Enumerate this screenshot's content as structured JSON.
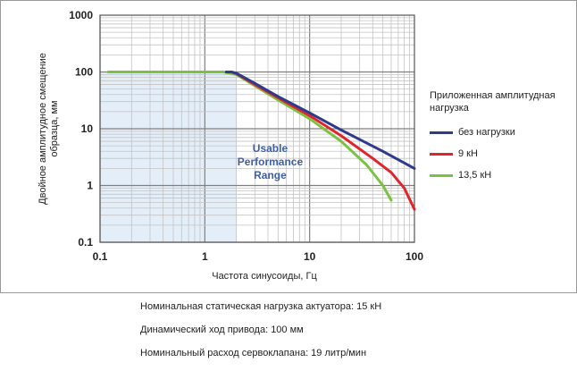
{
  "chart_data": {
    "type": "line",
    "xscale": "log",
    "yscale": "log",
    "xlim": [
      0.1,
      100
    ],
    "ylim": [
      0.1,
      1000
    ],
    "xticks": [
      "0.1",
      "1",
      "10",
      "100"
    ],
    "yticks": [
      "0.1",
      "1",
      "10",
      "100",
      "1000"
    ],
    "xlabel": "Частота синусоиды, Гц",
    "ylabel_line1": "Двойное амплитудное смещение",
    "ylabel_line2": "образца, мм",
    "region_label": [
      "Usable",
      "Performance",
      "Range"
    ],
    "grid": true,
    "legend_title": "Приложенная амплитудная нагрузка",
    "legend_placement": "right",
    "series": [
      {
        "name": "без нагрузки",
        "color": "#2e3a8c",
        "x": [
          1.6,
          1.8,
          2,
          3,
          5,
          10,
          20,
          50,
          100
        ],
        "y": [
          100,
          100,
          95,
          63,
          37,
          19,
          9.5,
          4,
          2
        ]
      },
      {
        "name": "9 кН",
        "color": "#e0262c",
        "x": [
          1.6,
          1.8,
          2,
          3,
          5,
          10,
          20,
          40,
          60,
          80,
          100
        ],
        "y": [
          100,
          100,
          93,
          60,
          35,
          17,
          7.5,
          3,
          1.7,
          0.9,
          0.38
        ]
      },
      {
        "name": "13,5 кН",
        "color": "#7cc242",
        "x": [
          0.12,
          0.5,
          1,
          1.5,
          2,
          3,
          5,
          10,
          20,
          35,
          50,
          60
        ],
        "y": [
          100,
          100,
          100,
          100,
          90,
          57,
          32,
          15,
          6,
          2.3,
          1,
          0.55
        ]
      }
    ]
  },
  "specs": {
    "actuator_load": "Номинальная статическая нагрузка актуатора: 15 кН",
    "stroke": "Динамический ход привода: 100 мм",
    "flow": "Номинальный расход сервоклапана: 19 литр/мин"
  }
}
